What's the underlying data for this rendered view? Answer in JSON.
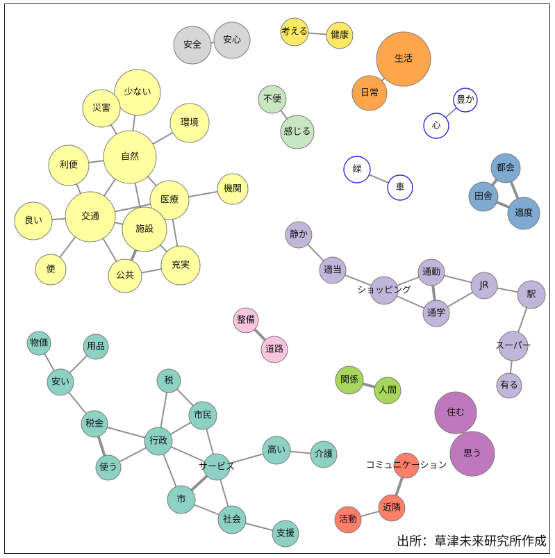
{
  "source_note": "出所：草津未来研究所作成",
  "groups": {
    "g1": {
      "fill": "#ffffa0"
    },
    "g2": {
      "fill": "#d6d6d6"
    },
    "g3": {
      "fill": "#ffe866"
    },
    "g4": {
      "fill": "#ffa64d"
    },
    "g5": {
      "fill": "#c8e6c0"
    },
    "g6": {
      "fill": "#ffffff",
      "stroke": "#2a2ae6"
    },
    "g7": {
      "fill": "#7eaad2"
    },
    "g8": {
      "fill": "#c0b6da"
    },
    "g9": {
      "fill": "#f8c4de"
    },
    "g10": {
      "fill": "#a8d65c"
    },
    "g11": {
      "fill": "#8dd1c4"
    },
    "g12": {
      "fill": "#bf78be"
    },
    "g13": {
      "fill": "#ff7f6a"
    }
  },
  "nodes": [
    {
      "id": "safety",
      "label": "安全",
      "group": "g2"
    },
    {
      "id": "peace",
      "label": "安心",
      "group": "g2"
    },
    {
      "id": "think",
      "label": "考える",
      "group": "g3"
    },
    {
      "id": "health",
      "label": "健康",
      "group": "g3"
    },
    {
      "id": "life",
      "label": "生活",
      "group": "g4"
    },
    {
      "id": "daily",
      "label": "日常",
      "group": "g4"
    },
    {
      "id": "inconv",
      "label": "不便",
      "group": "g5"
    },
    {
      "id": "feel",
      "label": "感じる",
      "group": "g5"
    },
    {
      "id": "rich",
      "label": "豊か",
      "group": "g6"
    },
    {
      "id": "heart",
      "label": "心",
      "group": "g6"
    },
    {
      "id": "green",
      "label": "緑",
      "group": "g6"
    },
    {
      "id": "car",
      "label": "車",
      "group": "g6"
    },
    {
      "id": "city",
      "label": "都会",
      "group": "g7"
    },
    {
      "id": "rural",
      "label": "田舎",
      "group": "g7"
    },
    {
      "id": "moderate",
      "label": "適度",
      "group": "g7"
    },
    {
      "id": "few",
      "label": "少ない",
      "group": "g1"
    },
    {
      "id": "disaster",
      "label": "災害",
      "group": "g1"
    },
    {
      "id": "env",
      "label": "環境",
      "group": "g1"
    },
    {
      "id": "nature",
      "label": "自然",
      "group": "g1"
    },
    {
      "id": "convenience",
      "label": "利便",
      "group": "g1"
    },
    {
      "id": "transport",
      "label": "交通",
      "group": "g1"
    },
    {
      "id": "medical",
      "label": "医療",
      "group": "g1"
    },
    {
      "id": "institution",
      "label": "機関",
      "group": "g1"
    },
    {
      "id": "good",
      "label": "良い",
      "group": "g1"
    },
    {
      "id": "facility",
      "label": "施設",
      "group": "g1"
    },
    {
      "id": "handy",
      "label": "便",
      "group": "g1"
    },
    {
      "id": "public",
      "label": "公共",
      "group": "g1"
    },
    {
      "id": "enrich",
      "label": "充実",
      "group": "g1"
    },
    {
      "id": "quiet",
      "label": "静か",
      "group": "g8"
    },
    {
      "id": "suitable",
      "label": "適当",
      "group": "g8"
    },
    {
      "id": "shopping",
      "label": "ショッピング",
      "group": "g8"
    },
    {
      "id": "commute",
      "label": "通勤",
      "group": "g8"
    },
    {
      "id": "jr",
      "label": "JR",
      "group": "g8"
    },
    {
      "id": "station",
      "label": "駅",
      "group": "g8"
    },
    {
      "id": "school",
      "label": "通学",
      "group": "g8"
    },
    {
      "id": "super",
      "label": "スーパー",
      "group": "g8"
    },
    {
      "id": "exist",
      "label": "有る",
      "group": "g8"
    },
    {
      "id": "maint",
      "label": "整備",
      "group": "g9"
    },
    {
      "id": "road",
      "label": "道路",
      "group": "g9"
    },
    {
      "id": "relation",
      "label": "関係",
      "group": "g10"
    },
    {
      "id": "human",
      "label": "人間",
      "group": "g10"
    },
    {
      "id": "prices",
      "label": "物価",
      "group": "g11"
    },
    {
      "id": "goods",
      "label": "用品",
      "group": "g11"
    },
    {
      "id": "cheap",
      "label": "安い",
      "group": "g11"
    },
    {
      "id": "tax",
      "label": "税",
      "group": "g11"
    },
    {
      "id": "taxmoney",
      "label": "税金",
      "group": "g11"
    },
    {
      "id": "citizen",
      "label": "市民",
      "group": "g11"
    },
    {
      "id": "admin",
      "label": "行政",
      "group": "g11"
    },
    {
      "id": "use",
      "label": "使う",
      "group": "g11"
    },
    {
      "id": "service",
      "label": "サービス",
      "group": "g11"
    },
    {
      "id": "high",
      "label": "高い",
      "group": "g11"
    },
    {
      "id": "care",
      "label": "介護",
      "group": "g11"
    },
    {
      "id": "municipal",
      "label": "市",
      "group": "g11"
    },
    {
      "id": "society",
      "label": "社会",
      "group": "g11"
    },
    {
      "id": "support",
      "label": "支援",
      "group": "g11"
    },
    {
      "id": "live",
      "label": "住む",
      "group": "g12"
    },
    {
      "id": "omou",
      "label": "思う",
      "group": "g12"
    },
    {
      "id": "comm",
      "label": "コミュニケーション",
      "group": "g13"
    },
    {
      "id": "neighbor",
      "label": "近隣",
      "group": "g13"
    },
    {
      "id": "activity",
      "label": "活動",
      "group": "g13"
    }
  ],
  "edges": [
    {
      "source": "safety",
      "target": "peace",
      "weight": 1
    },
    {
      "source": "think",
      "target": "health",
      "weight": 1
    },
    {
      "source": "life",
      "target": "daily",
      "weight": 1
    },
    {
      "source": "inconv",
      "target": "feel",
      "weight": 1
    },
    {
      "source": "rich",
      "target": "heart",
      "weight": 1
    },
    {
      "source": "green",
      "target": "car",
      "weight": 1
    },
    {
      "source": "city",
      "target": "rural",
      "weight": 2
    },
    {
      "source": "rural",
      "target": "moderate",
      "weight": 2
    },
    {
      "source": "city",
      "target": "moderate",
      "weight": 2
    },
    {
      "source": "few",
      "target": "nature",
      "weight": 1
    },
    {
      "source": "disaster",
      "target": "nature",
      "weight": 1
    },
    {
      "source": "env",
      "target": "nature",
      "weight": 1
    },
    {
      "source": "convenience",
      "target": "nature",
      "weight": 1
    },
    {
      "source": "convenience",
      "target": "transport",
      "weight": 1
    },
    {
      "source": "nature",
      "target": "transport",
      "weight": 1
    },
    {
      "source": "nature",
      "target": "medical",
      "weight": 1
    },
    {
      "source": "nature",
      "target": "facility",
      "weight": 1
    },
    {
      "source": "medical",
      "target": "institution",
      "weight": 1
    },
    {
      "source": "medical",
      "target": "transport",
      "weight": 1
    },
    {
      "source": "medical",
      "target": "facility",
      "weight": 1
    },
    {
      "source": "medical",
      "target": "enrich",
      "weight": 1
    },
    {
      "source": "good",
      "target": "transport",
      "weight": 1
    },
    {
      "source": "transport",
      "target": "handy",
      "weight": 1
    },
    {
      "source": "transport",
      "target": "public",
      "weight": 1
    },
    {
      "source": "transport",
      "target": "facility",
      "weight": 1
    },
    {
      "source": "facility",
      "target": "public",
      "weight": 2
    },
    {
      "source": "facility",
      "target": "enrich",
      "weight": 1
    },
    {
      "source": "public",
      "target": "enrich",
      "weight": 1
    },
    {
      "source": "quiet",
      "target": "suitable",
      "weight": 1
    },
    {
      "source": "suitable",
      "target": "shopping",
      "weight": 1
    },
    {
      "source": "shopping",
      "target": "commute",
      "weight": 1
    },
    {
      "source": "shopping",
      "target": "school",
      "weight": 1
    },
    {
      "source": "commute",
      "target": "school",
      "weight": 2
    },
    {
      "source": "commute",
      "target": "jr",
      "weight": 1
    },
    {
      "source": "school",
      "target": "jr",
      "weight": 1
    },
    {
      "source": "jr",
      "target": "station",
      "weight": 1
    },
    {
      "source": "station",
      "target": "super",
      "weight": 1
    },
    {
      "source": "super",
      "target": "exist",
      "weight": 1
    },
    {
      "source": "maint",
      "target": "road",
      "weight": 2
    },
    {
      "source": "relation",
      "target": "human",
      "weight": 2
    },
    {
      "source": "prices",
      "target": "cheap",
      "weight": 1
    },
    {
      "source": "goods",
      "target": "cheap",
      "weight": 1
    },
    {
      "source": "cheap",
      "target": "taxmoney",
      "weight": 1
    },
    {
      "source": "taxmoney",
      "target": "admin",
      "weight": 1
    },
    {
      "source": "taxmoney",
      "target": "use",
      "weight": 2
    },
    {
      "source": "tax",
      "target": "admin",
      "weight": 1
    },
    {
      "source": "tax",
      "target": "citizen",
      "weight": 1
    },
    {
      "source": "citizen",
      "target": "admin",
      "weight": 1
    },
    {
      "source": "citizen",
      "target": "service",
      "weight": 1
    },
    {
      "source": "admin",
      "target": "use",
      "weight": 1
    },
    {
      "source": "admin",
      "target": "service",
      "weight": 1
    },
    {
      "source": "admin",
      "target": "municipal",
      "weight": 1
    },
    {
      "source": "service",
      "target": "high",
      "weight": 1
    },
    {
      "source": "service",
      "target": "municipal",
      "weight": 2
    },
    {
      "source": "service",
      "target": "society",
      "weight": 1
    },
    {
      "source": "high",
      "target": "care",
      "weight": 1
    },
    {
      "source": "municipal",
      "target": "society",
      "weight": 1
    },
    {
      "source": "society",
      "target": "support",
      "weight": 1
    },
    {
      "source": "live",
      "target": "omou",
      "weight": 1
    },
    {
      "source": "comm",
      "target": "neighbor",
      "weight": 2
    },
    {
      "source": "neighbor",
      "target": "activity",
      "weight": 1
    }
  ]
}
